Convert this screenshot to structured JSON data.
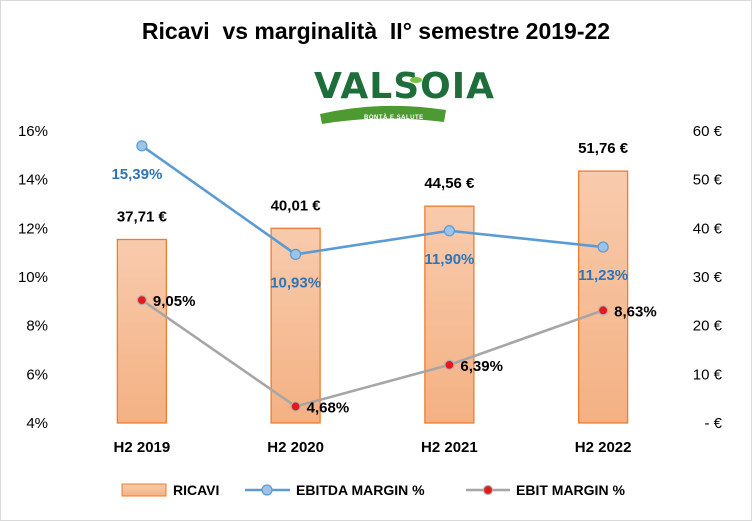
{
  "chart_data": {
    "type": "bar",
    "title": "Ricavi  vs marginalità  II° semestre 2019-22",
    "logo": {
      "name": "VALSOIA",
      "tagline": "BONTÀ E SALUTE"
    },
    "categories": [
      "H2 2019",
      "H2 2020",
      "H2 2021",
      "H2 2022"
    ],
    "left_axis": {
      "min": 0.04,
      "max": 0.16,
      "ticks": [
        "4%",
        "6%",
        "8%",
        "10%",
        "12%",
        "14%",
        "16%"
      ]
    },
    "right_axis": {
      "min": 0,
      "max": 60,
      "ticks": [
        "- €",
        "10 €",
        "20 €",
        "30 €",
        "40 €",
        "50 €",
        "60 €"
      ]
    },
    "series": [
      {
        "name": "RICAVI",
        "type": "bar",
        "axis": "right",
        "values": [
          37.71,
          40.01,
          44.56,
          51.76
        ],
        "labels": [
          "37,71 €",
          "40,01 €",
          "44,56 €",
          "51,76 €"
        ],
        "color": "#f4b183"
      },
      {
        "name": "EBITDA MARGIN %",
        "type": "line",
        "axis": "left",
        "values": [
          0.1539,
          0.1093,
          0.119,
          0.1123
        ],
        "labels": [
          "15,39%",
          "10,93%",
          "11,90%",
          "11,23%"
        ],
        "color": "#5b9bd5"
      },
      {
        "name": "EBIT MARGIN %",
        "type": "line",
        "axis": "left",
        "values": [
          0.0905,
          0.0468,
          0.0639,
          0.0863
        ],
        "labels": [
          "9,05%",
          "4,68%",
          "6,39%",
          "8,63%"
        ],
        "color": "#a6a6a6"
      }
    ],
    "legend": {
      "position": "bottom"
    },
    "grid": false
  },
  "colors": {
    "bar_fill_top": "#f8cbad",
    "bar_fill_bottom": "#f4b183",
    "bar_stroke": "#ed7d31",
    "ebitda_line": "#5b9bd5",
    "ebitda_marker": "#9dc3e6",
    "ebitda_label": "#2e75b6",
    "ebit_line": "#a6a6a6",
    "ebit_marker": "#e31a1c"
  }
}
